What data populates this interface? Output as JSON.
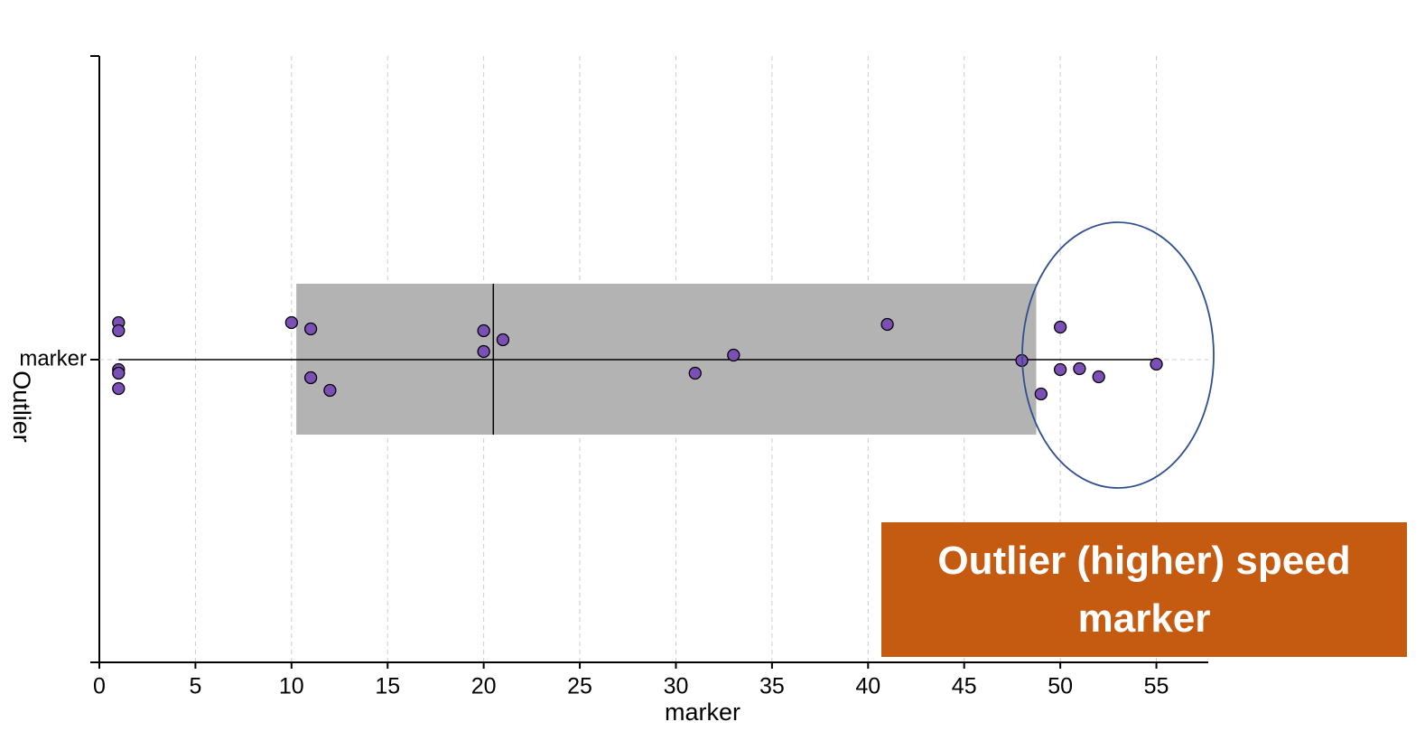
{
  "chart_data": {
    "type": "box",
    "categories": [
      "marker"
    ],
    "x_label": "marker",
    "y_label": "Outlier",
    "values": [
      1,
      1,
      1,
      1,
      1,
      10,
      11,
      11,
      12,
      20,
      20,
      21,
      31,
      33,
      41,
      48,
      49,
      50,
      50,
      51,
      52,
      55
    ],
    "point_color": "#7b4fb5",
    "box": {
      "whisker_low": 1,
      "q1": 10.25,
      "median": 20.5,
      "q3": 48.75,
      "whisker_high": 55,
      "color": "#b3b3b3"
    },
    "xlim": [
      0,
      57.7
    ],
    "xticks": [
      0,
      5,
      10,
      15,
      20,
      25,
      30,
      35,
      40,
      45,
      50,
      55
    ],
    "grid": true,
    "annotation": "Outlier (higher) speed marker"
  }
}
